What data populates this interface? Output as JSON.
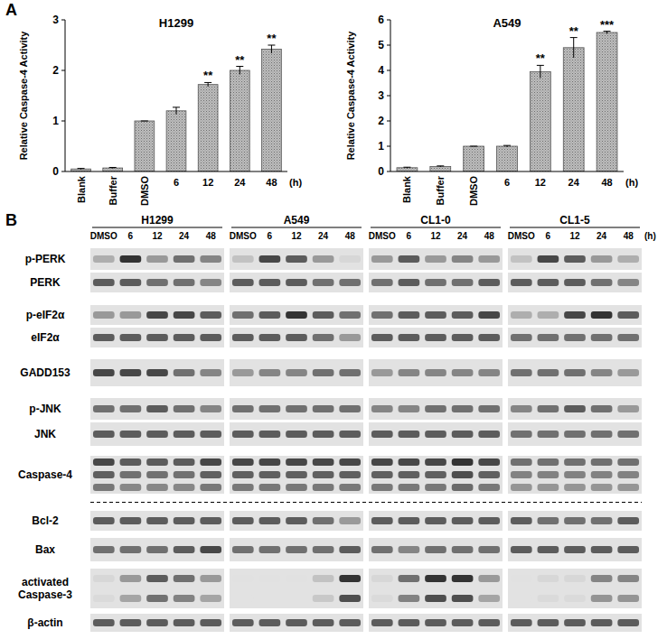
{
  "panel_labels": [
    "A",
    "B"
  ],
  "chart_data": [
    {
      "type": "bar",
      "title": "H1299",
      "ylabel": "Relative Caspase-4 Activity",
      "xlabel": "(h)",
      "categories": [
        "Blank",
        "Buffer",
        "DMSO",
        "6",
        "12",
        "24",
        "48"
      ],
      "values": [
        0.05,
        0.07,
        1.0,
        1.2,
        1.72,
        2.0,
        2.42
      ],
      "errors": [
        0.01,
        0.01,
        0.0,
        0.07,
        0.04,
        0.08,
        0.08
      ],
      "annotations": [
        null,
        null,
        null,
        null,
        "**",
        "**",
        "**"
      ],
      "color": "#bdbdbd",
      "ylim": [
        0,
        3
      ],
      "yticks": [
        0,
        1,
        2,
        3
      ]
    },
    {
      "type": "bar",
      "title": "A549",
      "ylabel": "Relative Caspase-4 Activity",
      "xlabel": "(h)",
      "categories": [
        "Blank",
        "Buffer",
        "DMSO",
        "6",
        "12",
        "24",
        "48"
      ],
      "values": [
        0.15,
        0.2,
        1.0,
        1.0,
        3.95,
        4.9,
        5.5
      ],
      "errors": [
        0.02,
        0.02,
        0.0,
        0.03,
        0.25,
        0.4,
        0.05
      ],
      "annotations": [
        null,
        null,
        null,
        null,
        "**",
        "**",
        "***"
      ],
      "color": "#bdbdbd",
      "ylim": [
        0,
        6
      ],
      "yticks": [
        0,
        1,
        2,
        3,
        4,
        5,
        6
      ]
    }
  ],
  "blots": {
    "cell_lines": [
      "H1299",
      "A549",
      "CL1-0",
      "CL1-5"
    ],
    "lanes": [
      "DMSO",
      "6",
      "12",
      "24",
      "48"
    ],
    "lane_unit": "(h)",
    "rows": [
      {
        "label": "p-PERK",
        "bands": [
          [
            0.3,
            0.9,
            0.4,
            0.6,
            0.5
          ],
          [
            0.2,
            0.8,
            0.7,
            0.4,
            0.1
          ],
          [
            0.4,
            0.7,
            0.4,
            0.5,
            0.4
          ],
          [
            0.2,
            0.8,
            0.7,
            0.4,
            0.3
          ]
        ]
      },
      {
        "label": "PERK",
        "bands": [
          [
            0.7,
            0.7,
            0.6,
            0.6,
            0.5
          ],
          [
            0.7,
            0.7,
            0.7,
            0.6,
            0.6
          ],
          [
            0.6,
            0.7,
            0.6,
            0.6,
            0.7
          ],
          [
            0.7,
            0.7,
            0.7,
            0.6,
            0.5
          ]
        ]
      },
      {
        "label": "p-eIF2α",
        "bands": [
          [
            0.4,
            0.4,
            0.8,
            0.8,
            0.7
          ],
          [
            0.6,
            0.7,
            0.9,
            0.7,
            0.6
          ],
          [
            0.6,
            0.7,
            0.7,
            0.7,
            0.8
          ],
          [
            0.3,
            0.3,
            0.8,
            0.9,
            0.7
          ]
        ]
      },
      {
        "label": "eIF2α",
        "bands": [
          [
            0.7,
            0.7,
            0.7,
            0.7,
            0.7
          ],
          [
            0.7,
            0.7,
            0.7,
            0.6,
            0.4
          ],
          [
            0.7,
            0.7,
            0.7,
            0.7,
            0.7
          ],
          [
            0.6,
            0.6,
            0.6,
            0.6,
            0.6
          ]
        ]
      },
      {
        "label": "GADD153",
        "bands": [
          [
            0.8,
            0.8,
            0.8,
            0.6,
            0.5
          ],
          [
            0.4,
            0.5,
            0.5,
            0.6,
            0.6
          ],
          [
            0.4,
            0.5,
            0.5,
            0.5,
            0.5
          ],
          [
            0.6,
            0.6,
            0.6,
            0.5,
            0.4
          ]
        ]
      },
      {
        "label": "p-JNK",
        "bands": [
          [
            0.6,
            0.6,
            0.7,
            0.6,
            0.5
          ],
          [
            0.6,
            0.6,
            0.6,
            0.6,
            0.6
          ],
          [
            0.5,
            0.5,
            0.6,
            0.6,
            0.6
          ],
          [
            0.5,
            0.6,
            0.7,
            0.6,
            0.4
          ]
        ]
      },
      {
        "label": "JNK",
        "bands": [
          [
            0.7,
            0.7,
            0.7,
            0.7,
            0.7
          ],
          [
            0.7,
            0.7,
            0.7,
            0.7,
            0.7
          ],
          [
            0.7,
            0.7,
            0.7,
            0.7,
            0.7
          ],
          [
            0.6,
            0.6,
            0.6,
            0.6,
            0.6
          ]
        ]
      },
      {
        "label": "Caspase-4",
        "bands": [
          [
            0.8,
            0.7,
            0.7,
            0.7,
            0.8
          ],
          [
            0.8,
            0.8,
            0.8,
            0.8,
            0.8
          ],
          [
            0.8,
            0.8,
            0.8,
            0.9,
            0.8
          ],
          [
            0.6,
            0.6,
            0.6,
            0.6,
            0.6
          ]
        ]
      },
      {
        "label": "Bcl-2",
        "bands": [
          [
            0.7,
            0.7,
            0.7,
            0.7,
            0.7
          ],
          [
            0.7,
            0.7,
            0.7,
            0.6,
            0.4
          ],
          [
            0.7,
            0.7,
            0.7,
            0.7,
            0.7
          ],
          [
            0.7,
            0.6,
            0.6,
            0.6,
            0.7
          ]
        ]
      },
      {
        "label": "Bax",
        "bands": [
          [
            0.6,
            0.6,
            0.6,
            0.7,
            0.8
          ],
          [
            0.6,
            0.6,
            0.6,
            0.6,
            0.7
          ],
          [
            0.6,
            0.5,
            0.6,
            0.6,
            0.6
          ],
          [
            0.7,
            0.7,
            0.7,
            0.7,
            0.7
          ]
        ]
      },
      {
        "label": "activated Caspase-3",
        "bands": [
          [
            0.1,
            0.4,
            0.7,
            0.6,
            0.4
          ],
          [
            0.05,
            0.05,
            0.05,
            0.2,
            0.9
          ],
          [
            0.1,
            0.6,
            0.9,
            0.9,
            0.4
          ],
          [
            0.05,
            0.1,
            0.1,
            0.5,
            0.5
          ]
        ]
      },
      {
        "label": "β-actin",
        "bands": [
          [
            0.7,
            0.7,
            0.7,
            0.7,
            0.7
          ],
          [
            0.7,
            0.7,
            0.7,
            0.7,
            0.7
          ],
          [
            0.7,
            0.7,
            0.7,
            0.7,
            0.7
          ],
          [
            0.7,
            0.7,
            0.7,
            0.7,
            0.7
          ]
        ]
      }
    ]
  }
}
